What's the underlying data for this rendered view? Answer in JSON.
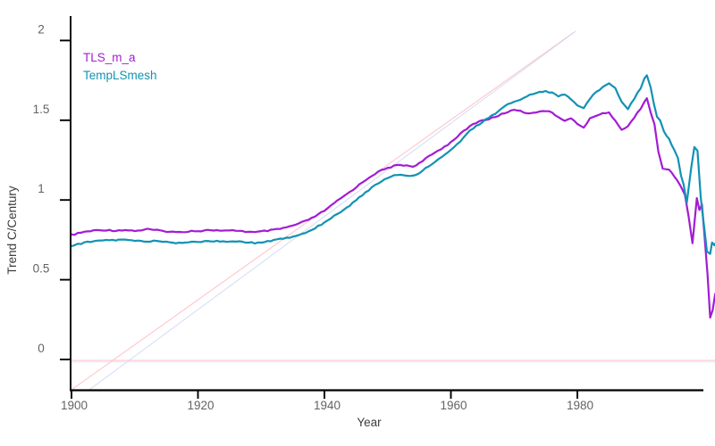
{
  "chart_data": {
    "type": "line",
    "title": "",
    "xlabel": "Year",
    "ylabel": "Trend C/Century",
    "xlim": [
      1900,
      2002
    ],
    "ylim": [
      -0.19,
      2.22
    ],
    "grid": false,
    "x_ticks": [
      1900,
      1920,
      1940,
      1960,
      1980
    ],
    "x_tick_labels": [
      "1900",
      "1920",
      "1940",
      "1960",
      "1980"
    ],
    "y_ticks": [
      0,
      0.5,
      1,
      1.5,
      2
    ],
    "y_tick_labels": [
      "0",
      "0.5",
      "1",
      "1.5",
      "2"
    ],
    "legend": {
      "position": "top-left",
      "entries": [
        {
          "label": "TLS_m_a",
          "color": "#a21cd4"
        },
        {
          "label": "TempLSmesh",
          "color": "#1292b4"
        }
      ]
    },
    "reference_lines": [
      {
        "name": "pink-diagonal-trend",
        "color": "#ffbfc7",
        "opacity": 0.9,
        "from": [
          1900,
          -0.19
        ],
        "to": [
          1979.4,
          2.05
        ]
      },
      {
        "name": "blue-diagonal-trend",
        "color": "#cdd7f4",
        "opacity": 0.8,
        "from": [
          1902.8,
          -0.19
        ],
        "to": [
          1979.8,
          2.06
        ]
      },
      {
        "name": "pink-zero-line",
        "color": "#ffbfc7",
        "opacity": 0.9,
        "from": [
          1900,
          -0.006
        ],
        "to": [
          2002,
          -0.006
        ]
      },
      {
        "name": "blue-zero-line",
        "color": "#d8dff6",
        "opacity": 0.7,
        "from": [
          1900,
          -0.016
        ],
        "to": [
          2002,
          -0.016
        ]
      }
    ],
    "series": [
      {
        "name": "TLS_m_a",
        "color": "#a21cd4",
        "points": [
          [
            1900,
            0.78
          ],
          [
            1901,
            0.79
          ],
          [
            1902,
            0.8
          ],
          [
            1903,
            0.805
          ],
          [
            1904,
            0.81
          ],
          [
            1905,
            0.812
          ],
          [
            1906,
            0.81
          ],
          [
            1907,
            0.808
          ],
          [
            1908,
            0.812
          ],
          [
            1909,
            0.81
          ],
          [
            1910,
            0.807
          ],
          [
            1911,
            0.81
          ],
          [
            1912,
            0.817
          ],
          [
            1913,
            0.812
          ],
          [
            1914,
            0.807
          ],
          [
            1915,
            0.804
          ],
          [
            1916,
            0.8
          ],
          [
            1917,
            0.797
          ],
          [
            1918,
            0.802
          ],
          [
            1919,
            0.807
          ],
          [
            1920,
            0.805
          ],
          [
            1921,
            0.809
          ],
          [
            1922,
            0.812
          ],
          [
            1923,
            0.809
          ],
          [
            1924,
            0.805
          ],
          [
            1925,
            0.807
          ],
          [
            1926,
            0.809
          ],
          [
            1927,
            0.805
          ],
          [
            1928,
            0.8
          ],
          [
            1929,
            0.797
          ],
          [
            1930,
            0.802
          ],
          [
            1931,
            0.807
          ],
          [
            1932,
            0.812
          ],
          [
            1933,
            0.819
          ],
          [
            1934,
            0.828
          ],
          [
            1935,
            0.839
          ],
          [
            1936,
            0.852
          ],
          [
            1937,
            0.868
          ],
          [
            1938,
            0.886
          ],
          [
            1939,
            0.908
          ],
          [
            1940,
            0.933
          ],
          [
            1941,
            0.962
          ],
          [
            1942,
            0.993
          ],
          [
            1943,
            1.022
          ],
          [
            1944,
            1.05
          ],
          [
            1945,
            1.08
          ],
          [
            1946,
            1.11
          ],
          [
            1947,
            1.14
          ],
          [
            1948,
            1.165
          ],
          [
            1949,
            1.185
          ],
          [
            1950,
            1.2
          ],
          [
            1951,
            1.213
          ],
          [
            1952,
            1.22
          ],
          [
            1953,
            1.216
          ],
          [
            1954,
            1.21
          ],
          [
            1955,
            1.23
          ],
          [
            1956,
            1.258
          ],
          [
            1957,
            1.285
          ],
          [
            1958,
            1.31
          ],
          [
            1959,
            1.335
          ],
          [
            1960,
            1.362
          ],
          [
            1961,
            1.398
          ],
          [
            1962,
            1.43
          ],
          [
            1963,
            1.462
          ],
          [
            1964,
            1.485
          ],
          [
            1965,
            1.5
          ],
          [
            1966,
            1.508
          ],
          [
            1967,
            1.52
          ],
          [
            1968,
            1.538
          ],
          [
            1969,
            1.553
          ],
          [
            1970,
            1.565
          ],
          [
            1971,
            1.562
          ],
          [
            1972,
            1.54
          ],
          [
            1973,
            1.55
          ],
          [
            1974,
            1.555
          ],
          [
            1975,
            1.56
          ],
          [
            1976,
            1.545
          ],
          [
            1977,
            1.52
          ],
          [
            1978,
            1.5
          ],
          [
            1979,
            1.51
          ],
          [
            1980,
            1.48
          ],
          [
            1981,
            1.45
          ],
          [
            1982,
            1.51
          ],
          [
            1983,
            1.53
          ],
          [
            1984,
            1.545
          ],
          [
            1985,
            1.545
          ],
          [
            1986,
            1.5
          ],
          [
            1987,
            1.44
          ],
          [
            1988,
            1.46
          ],
          [
            1989,
            1.52
          ],
          [
            1990,
            1.575
          ],
          [
            1990.6,
            1.615
          ],
          [
            1991,
            1.64
          ],
          [
            1991.6,
            1.55
          ],
          [
            1992.2,
            1.47
          ],
          [
            1992.8,
            1.3
          ],
          [
            1993.5,
            1.2
          ],
          [
            1994.5,
            1.19
          ],
          [
            1995.3,
            1.15
          ],
          [
            1996.3,
            1.09
          ],
          [
            1997,
            1.03
          ],
          [
            1997.6,
            0.9
          ],
          [
            1998.2,
            0.73
          ],
          [
            1998.9,
            1.01
          ],
          [
            1999.3,
            0.94
          ],
          [
            1999.7,
            0.97
          ],
          [
            2000.1,
            0.78
          ],
          [
            2000.6,
            0.53
          ],
          [
            2001,
            0.26
          ],
          [
            2001.4,
            0.31
          ],
          [
            2001.8,
            0.41
          ],
          [
            2002,
            0.42
          ]
        ]
      },
      {
        "name": "TempLSmesh",
        "color": "#1292b4",
        "points": [
          [
            1900,
            0.71
          ],
          [
            1901,
            0.722
          ],
          [
            1902,
            0.732
          ],
          [
            1903,
            0.738
          ],
          [
            1904,
            0.742
          ],
          [
            1905,
            0.746
          ],
          [
            1906,
            0.748
          ],
          [
            1907,
            0.748
          ],
          [
            1908,
            0.75
          ],
          [
            1909,
            0.748
          ],
          [
            1910,
            0.745
          ],
          [
            1911,
            0.742
          ],
          [
            1912,
            0.74
          ],
          [
            1913,
            0.742
          ],
          [
            1914,
            0.74
          ],
          [
            1915,
            0.737
          ],
          [
            1916,
            0.733
          ],
          [
            1917,
            0.73
          ],
          [
            1918,
            0.734
          ],
          [
            1919,
            0.739
          ],
          [
            1920,
            0.737
          ],
          [
            1921,
            0.741
          ],
          [
            1922,
            0.744
          ],
          [
            1923,
            0.741
          ],
          [
            1924,
            0.737
          ],
          [
            1925,
            0.739
          ],
          [
            1926,
            0.741
          ],
          [
            1927,
            0.737
          ],
          [
            1928,
            0.733
          ],
          [
            1929,
            0.731
          ],
          [
            1930,
            0.736
          ],
          [
            1931,
            0.741
          ],
          [
            1932,
            0.747
          ],
          [
            1933,
            0.754
          ],
          [
            1934,
            0.762
          ],
          [
            1935,
            0.771
          ],
          [
            1936,
            0.782
          ],
          [
            1937,
            0.795
          ],
          [
            1938,
            0.813
          ],
          [
            1939,
            0.835
          ],
          [
            1940,
            0.86
          ],
          [
            1941,
            0.886
          ],
          [
            1942,
            0.912
          ],
          [
            1943,
            0.938
          ],
          [
            1944,
            0.966
          ],
          [
            1945,
            0.998
          ],
          [
            1946,
            1.032
          ],
          [
            1947,
            1.063
          ],
          [
            1948,
            1.092
          ],
          [
            1949,
            1.118
          ],
          [
            1950,
            1.14
          ],
          [
            1951,
            1.153
          ],
          [
            1952,
            1.16
          ],
          [
            1953,
            1.156
          ],
          [
            1954,
            1.15
          ],
          [
            1955,
            1.17
          ],
          [
            1956,
            1.198
          ],
          [
            1957,
            1.228
          ],
          [
            1958,
            1.258
          ],
          [
            1959,
            1.285
          ],
          [
            1960,
            1.312
          ],
          [
            1961,
            1.35
          ],
          [
            1962,
            1.39
          ],
          [
            1963,
            1.432
          ],
          [
            1964,
            1.462
          ],
          [
            1965,
            1.49
          ],
          [
            1966,
            1.518
          ],
          [
            1967,
            1.54
          ],
          [
            1968,
            1.57
          ],
          [
            1969,
            1.6
          ],
          [
            1970,
            1.618
          ],
          [
            1971,
            1.63
          ],
          [
            1972,
            1.648
          ],
          [
            1973,
            1.668
          ],
          [
            1974,
            1.678
          ],
          [
            1975,
            1.68
          ],
          [
            1976,
            1.672
          ],
          [
            1977,
            1.65
          ],
          [
            1978,
            1.66
          ],
          [
            1979,
            1.635
          ],
          [
            1980,
            1.595
          ],
          [
            1981,
            1.572
          ],
          [
            1982,
            1.635
          ],
          [
            1983,
            1.678
          ],
          [
            1984,
            1.708
          ],
          [
            1985,
            1.732
          ],
          [
            1986,
            1.7
          ],
          [
            1987,
            1.62
          ],
          [
            1988,
            1.572
          ],
          [
            1989,
            1.638
          ],
          [
            1990,
            1.7
          ],
          [
            1990.6,
            1.762
          ],
          [
            1991,
            1.78
          ],
          [
            1991.6,
            1.7
          ],
          [
            1992.1,
            1.6
          ],
          [
            1992.6,
            1.52
          ],
          [
            1993.1,
            1.5
          ],
          [
            1993.7,
            1.43
          ],
          [
            1994.5,
            1.38
          ],
          [
            1995.3,
            1.32
          ],
          [
            1995.9,
            1.26
          ],
          [
            1996.4,
            1.15
          ],
          [
            1996.8,
            1.1
          ],
          [
            1997.3,
            0.98
          ],
          [
            1998,
            1.2
          ],
          [
            1998.5,
            1.33
          ],
          [
            1999,
            1.31
          ],
          [
            1999.5,
            1.02
          ],
          [
            1999.8,
            0.91
          ],
          [
            2000.1,
            0.82
          ],
          [
            2000.5,
            0.68
          ],
          [
            2001,
            0.66
          ],
          [
            2001.3,
            0.73
          ],
          [
            2001.7,
            0.72
          ],
          [
            2002,
            0.74
          ]
        ]
      }
    ],
    "axis_colors": {
      "axis_line": "#000000",
      "tick_label": "#636363",
      "axis_title": "#3d3d3d"
    }
  }
}
